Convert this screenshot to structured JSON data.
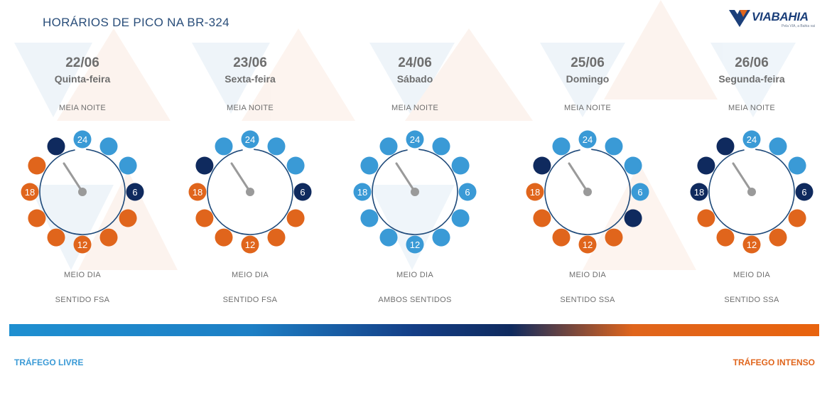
{
  "title": "HORÁRIOS DE PICO NA BR-324",
  "logo": {
    "via": "VIA",
    "bahia": "BAHIA",
    "tagline": "Pela VIA, a Bahia vai"
  },
  "colors": {
    "free": "#3a9ad6",
    "intense": "#e0651c",
    "dark": "#0f2a5e",
    "hand": "#9a9a9a",
    "arc": "#1f4a7a"
  },
  "hour_labels": {
    "h24": "24",
    "h6": "6",
    "h12": "12",
    "h18": "18"
  },
  "days": [
    {
      "date": "22/06",
      "weekday": "Quinta-feira",
      "midnight": "MEIA NOITE",
      "noon": "MEIO DIA",
      "direction": "SENTIDO FSA",
      "dots": [
        "free",
        "free",
        "free",
        "dark",
        "intense",
        "intense",
        "intense",
        "intense",
        "intense",
        "intense",
        "intense",
        "dark"
      ]
    },
    {
      "date": "23/06",
      "weekday": "Sexta-feira",
      "midnight": "MEIA NOITE",
      "noon": "MEIO DIA",
      "direction": "SENTIDO FSA",
      "dots": [
        "free",
        "free",
        "free",
        "dark",
        "intense",
        "intense",
        "intense",
        "intense",
        "intense",
        "intense",
        "dark",
        "free"
      ]
    },
    {
      "date": "24/06",
      "weekday": "Sábado",
      "midnight": "MEIA NOITE",
      "noon": "MEIO DIA",
      "direction": "AMBOS SENTIDOS",
      "dots": [
        "free",
        "free",
        "free",
        "free",
        "free",
        "free",
        "free",
        "free",
        "free",
        "free",
        "free",
        "free"
      ]
    },
    {
      "date": "25/06",
      "weekday": "Domingo",
      "midnight": "MEIA NOITE",
      "noon": "MEIO DIA",
      "direction": "SENTIDO SSA",
      "dots": [
        "free",
        "free",
        "free",
        "free",
        "dark",
        "intense",
        "intense",
        "intense",
        "intense",
        "intense",
        "dark",
        "free"
      ]
    },
    {
      "date": "26/06",
      "weekday": "Segunda-feira",
      "midnight": "MEIA NOITE",
      "noon": "MEIO DIA",
      "direction": "SENTIDO SSA",
      "dots": [
        "free",
        "free",
        "free",
        "dark",
        "intense",
        "intense",
        "intense",
        "intense",
        "intense",
        "dark",
        "dark",
        "dark"
      ]
    }
  ],
  "legend": {
    "left": "TRÁFEGO LIVRE",
    "right": "TRÁFEGO INTENSO"
  }
}
